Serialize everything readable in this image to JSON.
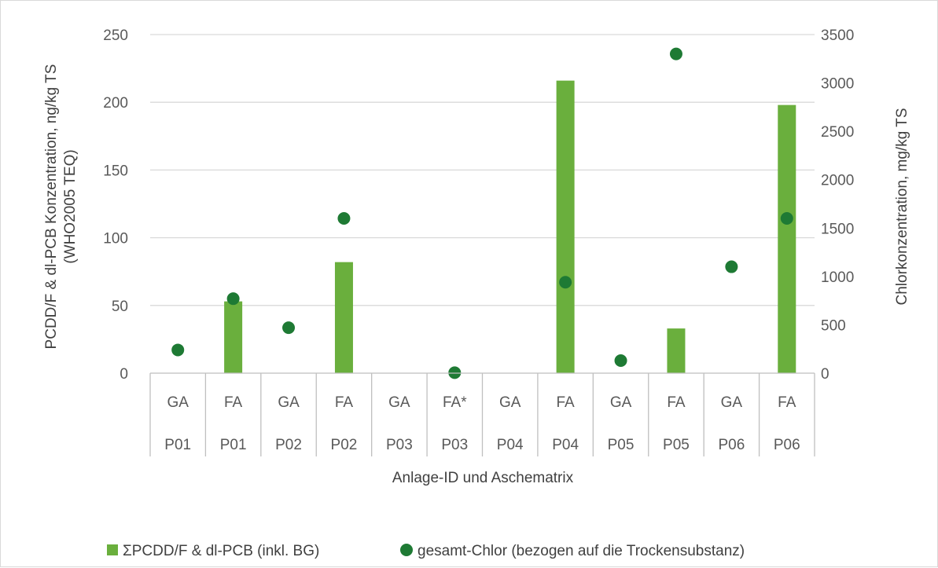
{
  "chart_data": {
    "type": "bar",
    "title": "",
    "xlabel": "Anlage-ID und Aschematrix",
    "ylabel_left_line1": "PCDD/F & dl-PCB Konzentration, ng/kg TS",
    "ylabel_left_line2": "(WHO2005 TEQ)",
    "ylabel_right": "Chlorkonzentration, mg/kg TS",
    "categories_matrix": [
      "GA",
      "FA",
      "GA",
      "FA",
      "GA",
      "FA*",
      "GA",
      "FA",
      "GA",
      "FA",
      "GA",
      "FA"
    ],
    "categories_plant": [
      "P01",
      "P01",
      "P02",
      "P02",
      "P03",
      "P03",
      "P04",
      "P04",
      "P05",
      "P05",
      "P06",
      "P06"
    ],
    "ylim_left": [
      0,
      250
    ],
    "yticks_left": [
      "0",
      "50",
      "100",
      "150",
      "200",
      "250"
    ],
    "ylim_right": [
      0,
      3500
    ],
    "yticks_right": [
      "0",
      "500",
      "1000",
      "1500",
      "2000",
      "2500",
      "3000",
      "3500"
    ],
    "grid": true,
    "legend_position": "bottom",
    "series": [
      {
        "name": "ΣPCDD/F & dl-PCB (inkl. BG)",
        "type": "bar",
        "axis": "left",
        "color": "#6aaf3d",
        "values": [
          null,
          53,
          null,
          82,
          null,
          null,
          null,
          216,
          null,
          33,
          null,
          198
        ]
      },
      {
        "name": "gesamt-Chlor (bezogen auf die Trockensubstanz)",
        "type": "scatter",
        "axis": "right",
        "color": "#1e7a34",
        "values": [
          240,
          770,
          470,
          1600,
          null,
          5,
          null,
          940,
          130,
          3300,
          1100,
          1600
        ]
      }
    ]
  }
}
